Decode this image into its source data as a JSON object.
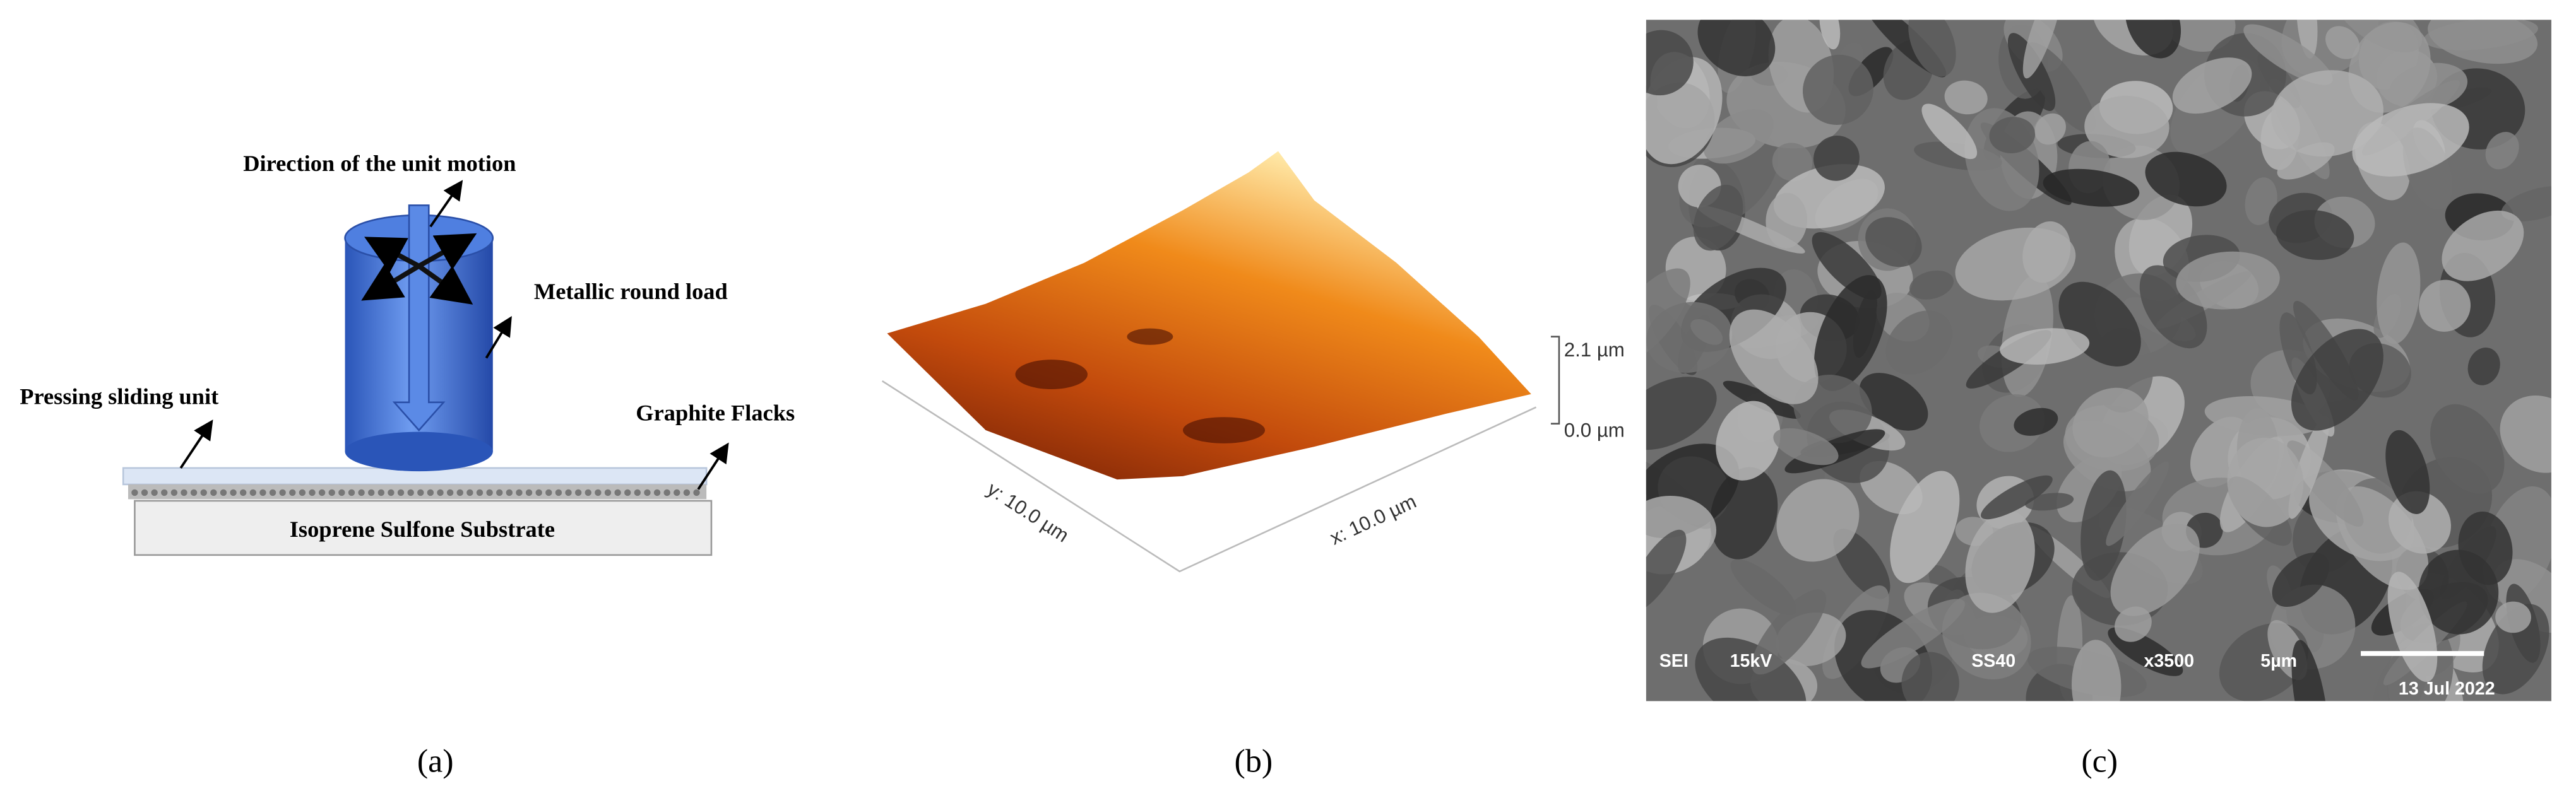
{
  "panels": [
    {
      "label": "(a)",
      "annotations": {
        "motion": "Direction of the unit motion",
        "load": "Metallic round load",
        "unit": "Pressing sliding unit",
        "flakes": "Graphite Flacks",
        "substrate": "Isoprene Sulfone Substrate"
      }
    },
    {
      "label": "(b)",
      "annotations": {
        "zmax": "2.1 µm",
        "zmin": "0.0 µm",
        "y_axis": "y: 10.0 µm",
        "x_axis": "x: 10.0 µm"
      }
    },
    {
      "label": "(c)",
      "annotations": {
        "mode": "SEI",
        "voltage": "15kV",
        "sample": "SS40",
        "magnification": "x3500",
        "scale": "5µm",
        "date": "13 Jul 2022"
      }
    }
  ]
}
